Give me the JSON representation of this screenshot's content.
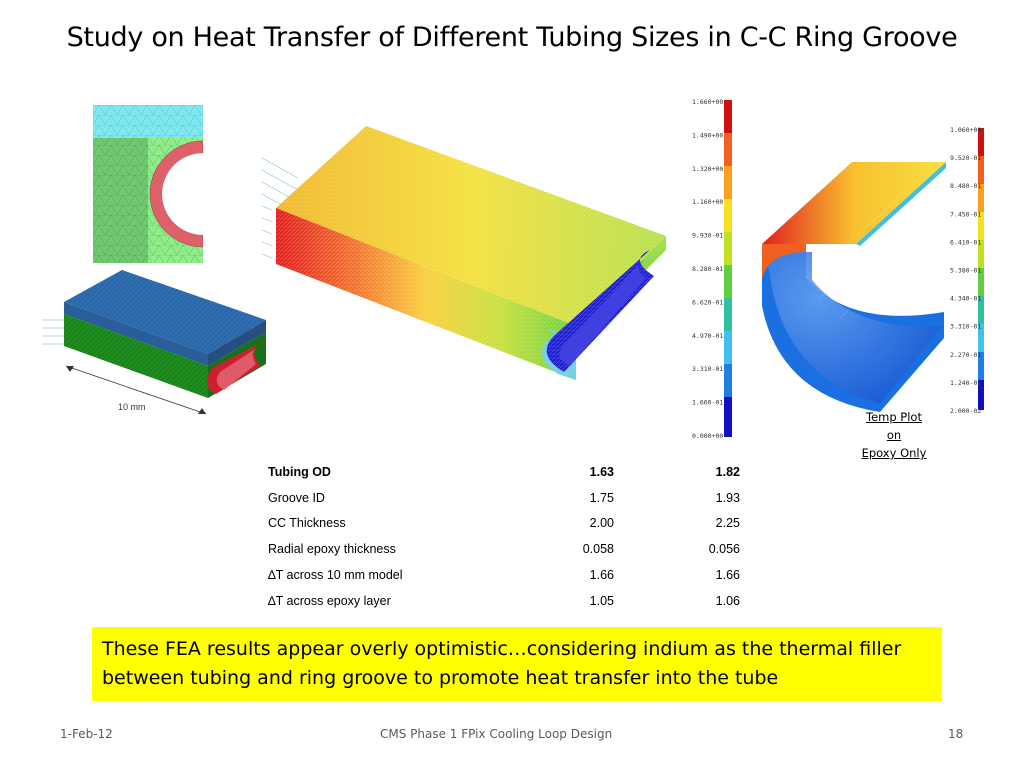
{
  "title": "Study on Heat Transfer of Different Tubing Sizes in C-C Ring Groove",
  "figures": {
    "dimension_label": "10 mm",
    "scale_left": [
      "1.660+00",
      "1.490+00",
      "1.320+00",
      "1.160+00",
      "9.930-01",
      "8.280-01",
      "6.620-01",
      "4.970-01",
      "3.310-01",
      "1.660-01",
      "0.000+00"
    ],
    "scale_right": [
      "1.060+00",
      "9.520-01",
      "8.480-01",
      "7.450-01",
      "6.410-01",
      "5.380-01",
      "4.340-01",
      "3.310-01",
      "2.270-01",
      "1.240-01",
      "2.000-02"
    ],
    "label_lines": [
      "Temp Plot",
      "on",
      "Epoxy Only"
    ]
  },
  "table": {
    "rows": [
      {
        "label": "Tubing OD",
        "v1": "1.63",
        "v2": "1.82",
        "header": true
      },
      {
        "label": "Groove ID",
        "v1": "1.75",
        "v2": "1.93"
      },
      {
        "label": "CC Thickness",
        "v1": "2.00",
        "v2": "2.25"
      },
      {
        "label": "Radial epoxy thickness",
        "v1": "0.058",
        "v2": "0.056"
      },
      {
        "label": "∆T across 10 mm model",
        "v1": "1.66",
        "v2": "1.66"
      },
      {
        "label": "∆T across epoxy layer",
        "v1": "1.05",
        "v2": "1.06"
      }
    ]
  },
  "note": "These FEA results appear overly optimistic…considering indium as the thermal filler between tubing and ring groove to promote heat transfer into the tube",
  "footer": {
    "date": "1-Feb-12",
    "center": "CMS Phase 1 FPix Cooling Loop Design",
    "page": "18"
  },
  "colors": {
    "note_bg": "#ffff00",
    "epoxy_top": "#2e6db0",
    "cc_green": "#1e8c1e",
    "tube_red": "#e0606a",
    "cyan_region": "#7fe8f0",
    "light_green": "#8fe08f"
  }
}
